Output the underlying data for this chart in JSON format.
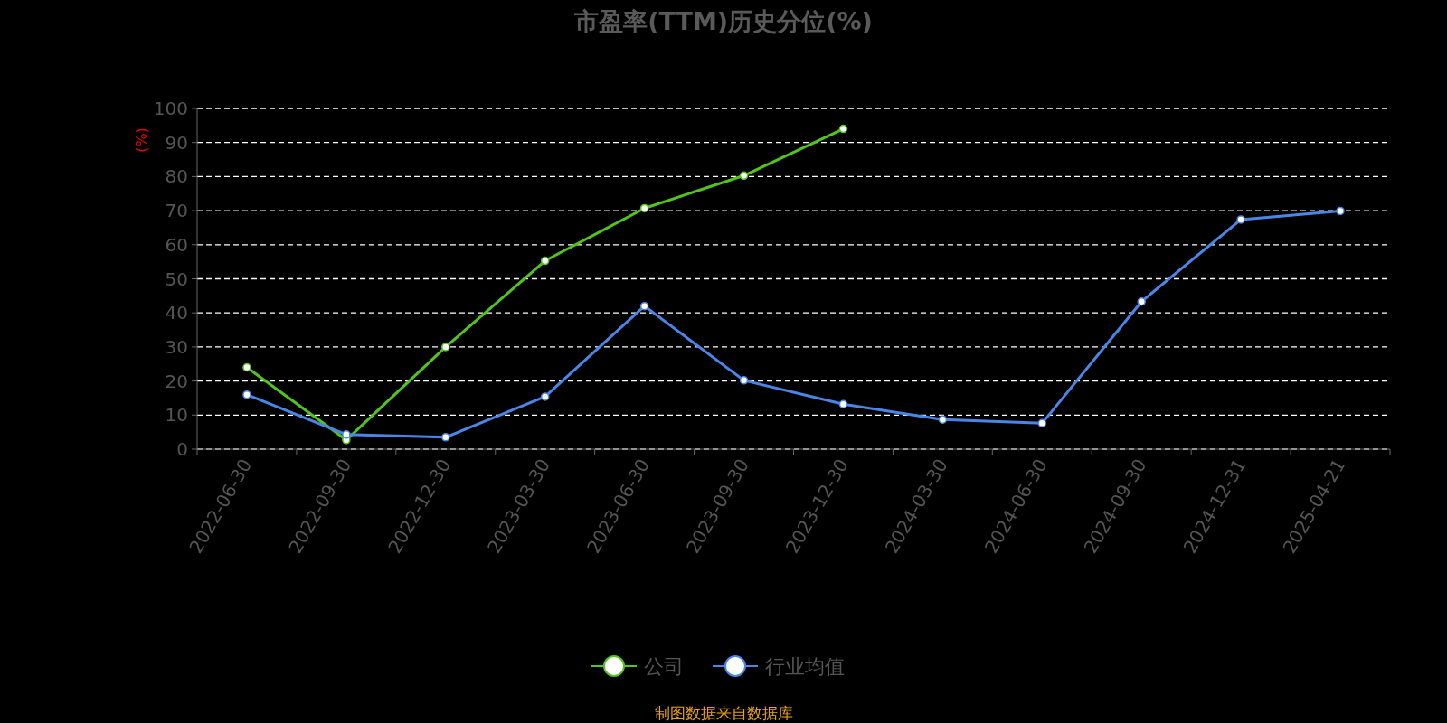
{
  "chart_data": {
    "type": "line",
    "title": "市盈率(TTM)历史分位(%)",
    "ylabel": "(%)",
    "categories": [
      "2022-06-30",
      "2022-09-30",
      "2022-12-30",
      "2023-03-30",
      "2023-06-30",
      "2023-09-30",
      "2023-12-30",
      "2024-03-30",
      "2024-06-30",
      "2024-09-30",
      "2024-12-31",
      "2025-04-21"
    ],
    "series": [
      {
        "name": "公司",
        "color": "#52c41a",
        "values": [
          24,
          2.7,
          30,
          55.3,
          70.7,
          80.3,
          94,
          null,
          null,
          null,
          null,
          null
        ]
      },
      {
        "name": "行业均值",
        "color": "#4a86e8",
        "values": [
          16,
          4.3,
          3.5,
          15.4,
          42,
          20.2,
          13.2,
          8.7,
          7.6,
          43.3,
          67.4,
          69.9
        ]
      }
    ],
    "ylim": [
      0,
      100
    ],
    "yticks": [
      0,
      10,
      20,
      30,
      40,
      50,
      60,
      70,
      80,
      90,
      100
    ],
    "grid": "y",
    "legend": "bottom",
    "marker": "circle",
    "annotations": [
      "制图数据来自数据库"
    ]
  }
}
